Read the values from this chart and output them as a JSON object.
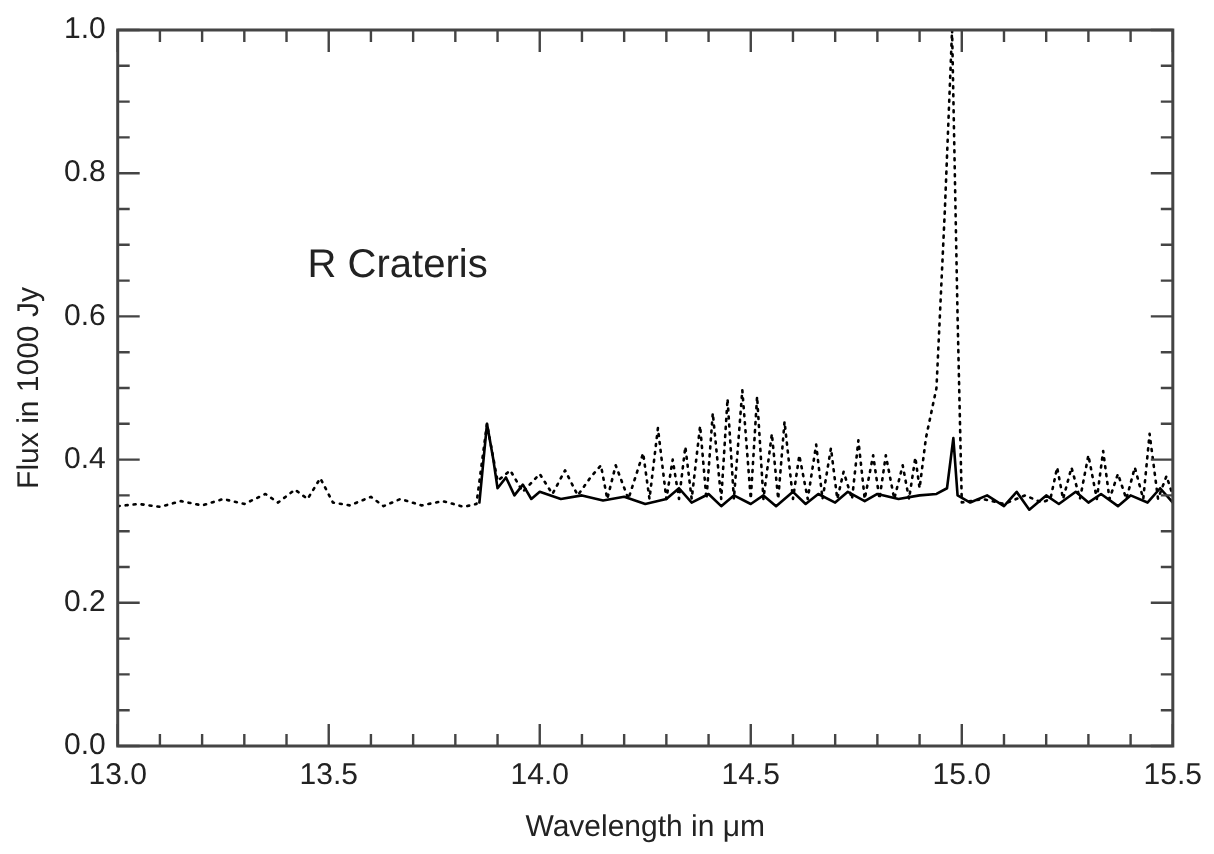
{
  "chart_data": {
    "type": "line",
    "xlabel": "Wavelength in μm",
    "ylabel": "Flux in 1000 Jy",
    "annotations": [
      "R Crateris"
    ],
    "xlim": [
      13.0,
      15.5
    ],
    "ylim": [
      0.0,
      1.0
    ],
    "xticks": [
      {
        "value": 13.0,
        "label": "13.0"
      },
      {
        "value": 13.1,
        "label": null
      },
      {
        "value": 13.2,
        "label": null
      },
      {
        "value": 13.3,
        "label": null
      },
      {
        "value": 13.4,
        "label": null
      },
      {
        "value": 13.5,
        "label": "13.5"
      },
      {
        "value": 13.6,
        "label": null
      },
      {
        "value": 13.7,
        "label": null
      },
      {
        "value": 13.8,
        "label": null
      },
      {
        "value": 13.9,
        "label": null
      },
      {
        "value": 14.0,
        "label": "14.0"
      },
      {
        "value": 14.1,
        "label": null
      },
      {
        "value": 14.2,
        "label": null
      },
      {
        "value": 14.3,
        "label": null
      },
      {
        "value": 14.4,
        "label": null
      },
      {
        "value": 14.5,
        "label": "14.5"
      },
      {
        "value": 14.6,
        "label": null
      },
      {
        "value": 14.7,
        "label": null
      },
      {
        "value": 14.8,
        "label": null
      },
      {
        "value": 14.9,
        "label": null
      },
      {
        "value": 15.0,
        "label": "15.0"
      },
      {
        "value": 15.1,
        "label": null
      },
      {
        "value": 15.2,
        "label": null
      },
      {
        "value": 15.3,
        "label": null
      },
      {
        "value": 15.4,
        "label": null
      },
      {
        "value": 15.5,
        "label": "15.5"
      }
    ],
    "yticks": [
      {
        "value": 0.0,
        "label": "0.0"
      },
      {
        "value": 0.05,
        "label": null
      },
      {
        "value": 0.1,
        "label": null
      },
      {
        "value": 0.15,
        "label": null
      },
      {
        "value": 0.2,
        "label": "0.2"
      },
      {
        "value": 0.25,
        "label": null
      },
      {
        "value": 0.3,
        "label": null
      },
      {
        "value": 0.35,
        "label": null
      },
      {
        "value": 0.4,
        "label": "0.4"
      },
      {
        "value": 0.45,
        "label": null
      },
      {
        "value": 0.5,
        "label": null
      },
      {
        "value": 0.55,
        "label": null
      },
      {
        "value": 0.6,
        "label": "0.6"
      },
      {
        "value": 0.65,
        "label": null
      },
      {
        "value": 0.7,
        "label": null
      },
      {
        "value": 0.75,
        "label": null
      },
      {
        "value": 0.8,
        "label": "0.8"
      },
      {
        "value": 0.85,
        "label": null
      },
      {
        "value": 0.9,
        "label": null
      },
      {
        "value": 0.95,
        "label": null
      },
      {
        "value": 1.0,
        "label": "1.0"
      }
    ],
    "grid": false,
    "legend": false,
    "marker": "none",
    "series": [
      {
        "color": "#000000",
        "line_style": "dotted",
        "x": [
          13.0,
          13.05,
          13.1,
          13.15,
          13.2,
          13.25,
          13.3,
          13.35,
          13.38,
          13.42,
          13.45,
          13.48,
          13.51,
          13.55,
          13.6,
          13.63,
          13.67,
          13.72,
          13.77,
          13.82,
          13.85,
          13.875,
          13.9,
          13.93,
          13.96,
          14.0,
          14.03,
          14.06,
          14.09,
          14.12,
          14.145,
          14.16,
          14.18,
          14.21,
          14.245,
          14.26,
          14.28,
          14.3,
          14.315,
          14.33,
          14.345,
          14.36,
          14.38,
          14.395,
          14.41,
          14.43,
          14.445,
          14.46,
          14.48,
          14.5,
          14.515,
          14.53,
          14.55,
          14.565,
          14.58,
          14.6,
          14.615,
          14.635,
          14.655,
          14.67,
          14.69,
          14.705,
          14.72,
          14.74,
          14.755,
          14.77,
          14.79,
          14.805,
          14.82,
          14.84,
          14.86,
          14.875,
          14.89,
          14.9,
          14.915,
          14.94,
          14.96,
          14.977,
          14.99,
          15.0,
          15.05,
          15.1,
          15.15,
          15.19,
          15.21,
          15.226,
          15.24,
          15.26,
          15.28,
          15.3,
          15.32,
          15.335,
          15.35,
          15.37,
          15.39,
          15.41,
          15.43,
          15.445,
          15.465,
          15.485,
          15.5
        ],
        "values": [
          0.335,
          0.338,
          0.334,
          0.342,
          0.336,
          0.345,
          0.338,
          0.352,
          0.34,
          0.358,
          0.345,
          0.374,
          0.34,
          0.336,
          0.348,
          0.335,
          0.345,
          0.336,
          0.342,
          0.334,
          0.338,
          0.45,
          0.37,
          0.385,
          0.355,
          0.38,
          0.352,
          0.385,
          0.35,
          0.375,
          0.392,
          0.345,
          0.392,
          0.345,
          0.409,
          0.345,
          0.444,
          0.345,
          0.4,
          0.345,
          0.418,
          0.345,
          0.447,
          0.345,
          0.465,
          0.345,
          0.485,
          0.345,
          0.497,
          0.345,
          0.488,
          0.345,
          0.436,
          0.345,
          0.453,
          0.345,
          0.406,
          0.345,
          0.421,
          0.345,
          0.416,
          0.345,
          0.383,
          0.345,
          0.427,
          0.345,
          0.406,
          0.345,
          0.406,
          0.345,
          0.392,
          0.345,
          0.403,
          0.36,
          0.43,
          0.5,
          0.75,
          1.0,
          0.6,
          0.34,
          0.345,
          0.338,
          0.35,
          0.34,
          0.345,
          0.389,
          0.345,
          0.389,
          0.345,
          0.406,
          0.345,
          0.412,
          0.345,
          0.38,
          0.345,
          0.389,
          0.345,
          0.436,
          0.345,
          0.377,
          0.35
        ]
      },
      {
        "color": "#000000",
        "line_style": "solid",
        "x": [
          13.857,
          13.875,
          13.89,
          13.9,
          13.92,
          13.94,
          13.96,
          13.98,
          14.0,
          14.05,
          14.1,
          14.15,
          14.2,
          14.25,
          14.3,
          14.33,
          14.36,
          14.4,
          14.43,
          14.46,
          14.5,
          14.53,
          14.56,
          14.6,
          14.63,
          14.66,
          14.7,
          14.73,
          14.77,
          14.8,
          14.85,
          14.9,
          14.94,
          14.965,
          14.98,
          14.99,
          15.02,
          15.06,
          15.1,
          15.13,
          15.16,
          15.2,
          15.23,
          15.27,
          15.3,
          15.33,
          15.37,
          15.4,
          15.44,
          15.47,
          15.5
        ],
        "values": [
          0.34,
          0.45,
          0.4,
          0.36,
          0.375,
          0.35,
          0.365,
          0.345,
          0.355,
          0.345,
          0.35,
          0.343,
          0.348,
          0.338,
          0.345,
          0.36,
          0.34,
          0.352,
          0.335,
          0.35,
          0.338,
          0.35,
          0.335,
          0.355,
          0.338,
          0.352,
          0.34,
          0.355,
          0.342,
          0.352,
          0.345,
          0.35,
          0.352,
          0.36,
          0.43,
          0.35,
          0.34,
          0.35,
          0.335,
          0.355,
          0.33,
          0.35,
          0.338,
          0.355,
          0.34,
          0.352,
          0.335,
          0.35,
          0.34,
          0.36,
          0.34
        ]
      }
    ]
  }
}
